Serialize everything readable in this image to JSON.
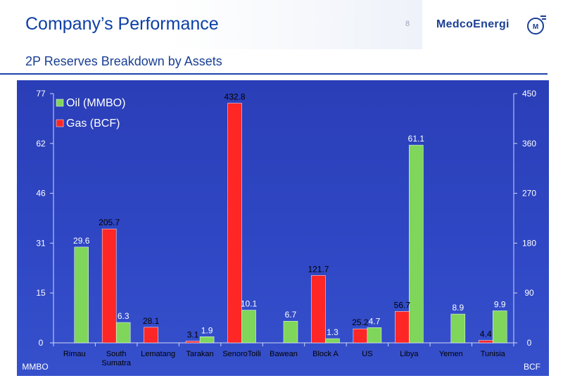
{
  "header": {
    "title": "Company’s Performance",
    "page_number": "8",
    "logo_text": "MedcoEnergi",
    "logo_icon": "medco-logo-icon"
  },
  "subtitle": "2P Reserves Breakdown by Assets",
  "colors": {
    "oil": "#7fd65a",
    "gas": "#ff2626",
    "panel": "#2f46c2",
    "accent": "#1a3f94"
  },
  "chart_data": {
    "type": "bar",
    "categories": [
      "Rimau",
      "South\nSumatra",
      "Lematang",
      "Tarakan",
      "SenoroToili",
      "Bawean",
      "Block A",
      "US",
      "Libya",
      "Yemen",
      "Tunisia"
    ],
    "series": [
      {
        "name": "Oil (MMBO)",
        "axis": "left",
        "values": [
          29.6,
          6.3,
          null,
          1.9,
          10.1,
          6.7,
          1.3,
          4.7,
          61.1,
          8.9,
          9.9
        ]
      },
      {
        "name": "Gas (BCF)",
        "axis": "right",
        "values": [
          null,
          205.7,
          28.1,
          3.1,
          432.8,
          null,
          121.7,
          25.2,
          56.7,
          null,
          4.4
        ]
      }
    ],
    "gas_first_order": true,
    "ylabel_left": "MMBO",
    "ylabel_right": "BCF",
    "ylim_left": [
      0,
      77
    ],
    "ylim_right": [
      0,
      450
    ],
    "yticks_left": [
      "0",
      "15",
      "31",
      "46",
      "62",
      "77"
    ],
    "yticks_right": [
      "0",
      "90",
      "180",
      "270",
      "360",
      "450"
    ],
    "legend_position": "top-left",
    "grid": false
  }
}
